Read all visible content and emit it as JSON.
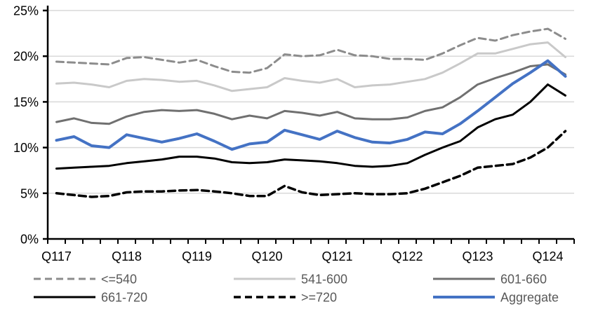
{
  "chart_data": {
    "type": "line",
    "title": "",
    "xlabel": "",
    "ylabel": "",
    "ylim": [
      0,
      25
    ],
    "y_tick_values": [
      0,
      5,
      10,
      15,
      20,
      25
    ],
    "y_tick_labels": [
      "0%",
      "5%",
      "10%",
      "15%",
      "20%",
      "25%"
    ],
    "x_categories": [
      "Q117",
      "Q217",
      "Q317",
      "Q417",
      "Q118",
      "Q218",
      "Q318",
      "Q418",
      "Q119",
      "Q219",
      "Q319",
      "Q419",
      "Q120",
      "Q220",
      "Q320",
      "Q420",
      "Q121",
      "Q221",
      "Q321",
      "Q421",
      "Q122",
      "Q222",
      "Q322",
      "Q422",
      "Q123",
      "Q223",
      "Q323",
      "Q423",
      "Q124",
      "Q224"
    ],
    "x_tick_labels": [
      "Q117",
      "Q118",
      "Q119",
      "Q120",
      "Q121",
      "Q122",
      "Q123",
      "Q124"
    ],
    "x_tick_label_every": 4,
    "grid": "horizontal",
    "legend_position": "bottom",
    "series": [
      {
        "name": "<=540",
        "color": "#8C8C8C",
        "style": "dashed",
        "width": 3,
        "values": [
          19.4,
          19.3,
          19.2,
          19.1,
          19.8,
          19.9,
          19.6,
          19.3,
          19.6,
          18.9,
          18.3,
          18.2,
          18.7,
          20.2,
          20.0,
          20.1,
          20.7,
          20.1,
          20.0,
          19.7,
          19.7,
          19.6,
          20.3,
          21.2,
          22.0,
          21.7,
          22.3,
          22.7,
          23.0,
          21.9
        ]
      },
      {
        "name": "541-600",
        "color": "#C9C9C9",
        "style": "solid",
        "width": 3,
        "values": [
          17.0,
          17.1,
          16.9,
          16.6,
          17.3,
          17.5,
          17.4,
          17.2,
          17.3,
          16.8,
          16.2,
          16.4,
          16.6,
          17.6,
          17.3,
          17.1,
          17.5,
          16.6,
          16.8,
          16.9,
          17.2,
          17.5,
          18.2,
          19.2,
          20.3,
          20.3,
          20.8,
          21.3,
          21.5,
          19.9
        ]
      },
      {
        "name": "601-660",
        "color": "#707070",
        "style": "solid",
        "width": 3,
        "values": [
          12.8,
          13.2,
          12.7,
          12.6,
          13.4,
          13.9,
          14.1,
          14.0,
          14.1,
          13.7,
          13.1,
          13.5,
          13.2,
          14.0,
          13.8,
          13.5,
          13.9,
          13.2,
          13.1,
          13.1,
          13.3,
          14.0,
          14.4,
          15.5,
          16.9,
          17.6,
          18.2,
          18.9,
          19.1,
          18.0
        ]
      },
      {
        "name": "661-720",
        "color": "#000000",
        "style": "solid",
        "width": 3,
        "values": [
          7.7,
          7.8,
          7.9,
          8.0,
          8.3,
          8.5,
          8.7,
          9.0,
          9.0,
          8.8,
          8.4,
          8.3,
          8.4,
          8.7,
          8.6,
          8.5,
          8.3,
          8.0,
          7.9,
          8.0,
          8.3,
          9.2,
          10.0,
          10.7,
          12.2,
          13.1,
          13.6,
          15.0,
          16.9,
          15.7
        ]
      },
      {
        "name": ">=720",
        "color": "#000000",
        "style": "dashed",
        "width": 3.5,
        "values": [
          5.0,
          4.8,
          4.6,
          4.7,
          5.1,
          5.2,
          5.2,
          5.3,
          5.35,
          5.2,
          5.0,
          4.7,
          4.7,
          5.8,
          5.1,
          4.8,
          4.9,
          5.0,
          4.9,
          4.9,
          5.0,
          5.5,
          6.2,
          6.9,
          7.8,
          8.0,
          8.2,
          8.9,
          10.0,
          11.8
        ]
      },
      {
        "name": "Aggregate",
        "color": "#4472C4",
        "style": "solid",
        "width": 4,
        "values": [
          10.8,
          11.2,
          10.2,
          10.0,
          11.4,
          11.0,
          10.6,
          11.0,
          11.5,
          10.7,
          9.8,
          10.4,
          10.6,
          11.9,
          11.4,
          10.9,
          11.8,
          11.1,
          10.6,
          10.5,
          10.9,
          11.7,
          11.5,
          12.6,
          14.0,
          15.5,
          17.0,
          18.2,
          19.5,
          17.8
        ]
      }
    ],
    "colors": {
      "gridline": "#D9D9D9",
      "axis": "#000000",
      "tick_label": "#000000",
      "legend_label": "#595959",
      "background": "#FFFFFF"
    }
  }
}
